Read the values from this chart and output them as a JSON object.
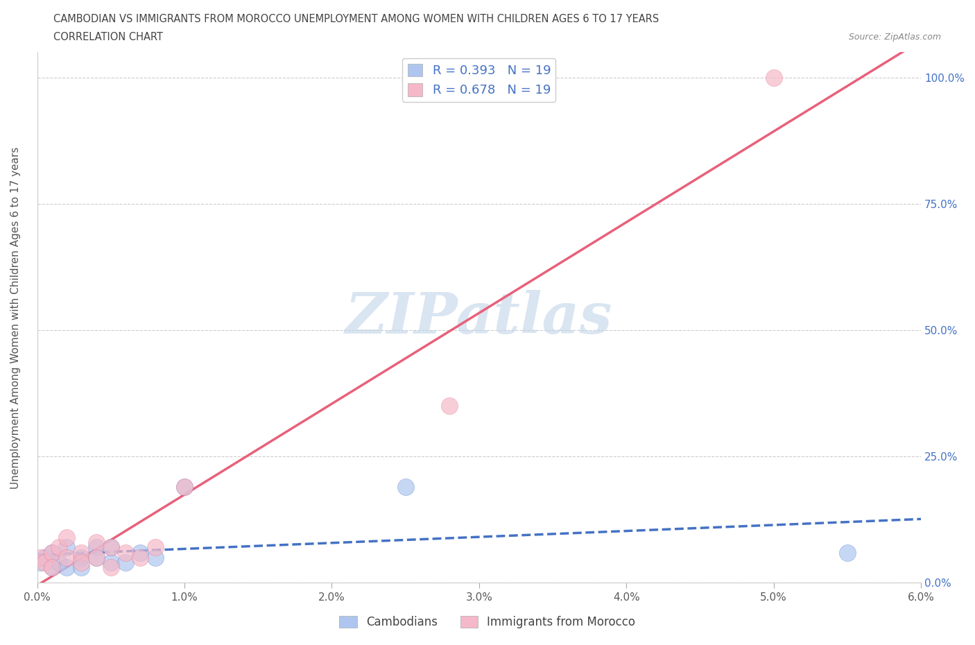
{
  "title": "CAMBODIAN VS IMMIGRANTS FROM MOROCCO UNEMPLOYMENT AMONG WOMEN WITH CHILDREN AGES 6 TO 17 YEARS",
  "subtitle": "CORRELATION CHART",
  "source": "Source: ZipAtlas.com",
  "legend_bottom_cam": "Cambodians",
  "legend_bottom_mor": "Immigrants from Morocco",
  "ylabel": "Unemployment Among Women with Children Ages 6 to 17 years",
  "xlim": [
    0.0,
    0.06
  ],
  "ylim": [
    0.0,
    1.05
  ],
  "xticks": [
    0.0,
    0.01,
    0.02,
    0.03,
    0.04,
    0.05,
    0.06
  ],
  "yticks": [
    0.0,
    0.25,
    0.5,
    0.75,
    1.0
  ],
  "ytick_labels": [
    "0.0%",
    "25.0%",
    "50.0%",
    "75.0%",
    "100.0%"
  ],
  "xtick_labels": [
    "0.0%",
    "1.0%",
    "2.0%",
    "3.0%",
    "4.0%",
    "5.0%",
    "6.0%"
  ],
  "R_cambodian": 0.393,
  "N_cambodian": 19,
  "R_morocco": 0.678,
  "N_morocco": 19,
  "color_cambodian": "#aec6ef",
  "color_morocco": "#f4b8c8",
  "line_color_cambodian": "#4472c4",
  "line_color_morocco": "#e8607a",
  "watermark": "ZIPatlas",
  "watermark_color": "#c0d4e8",
  "cam_x": [
    0.0002,
    0.0005,
    0.001,
    0.001,
    0.0015,
    0.002,
    0.002,
    0.003,
    0.003,
    0.004,
    0.004,
    0.005,
    0.005,
    0.006,
    0.007,
    0.008,
    0.01,
    0.025,
    0.055
  ],
  "cam_y": [
    0.04,
    0.05,
    0.03,
    0.06,
    0.04,
    0.03,
    0.07,
    0.05,
    0.03,
    0.07,
    0.05,
    0.04,
    0.07,
    0.04,
    0.06,
    0.05,
    0.19,
    0.19,
    0.06
  ],
  "mor_x": [
    0.0002,
    0.0005,
    0.001,
    0.001,
    0.0015,
    0.002,
    0.002,
    0.003,
    0.003,
    0.004,
    0.004,
    0.005,
    0.005,
    0.006,
    0.007,
    0.008,
    0.01,
    0.028,
    0.05
  ],
  "mor_y": [
    0.05,
    0.04,
    0.06,
    0.03,
    0.07,
    0.05,
    0.09,
    0.06,
    0.04,
    0.08,
    0.05,
    0.07,
    0.03,
    0.06,
    0.05,
    0.07,
    0.19,
    0.35,
    1.0
  ]
}
